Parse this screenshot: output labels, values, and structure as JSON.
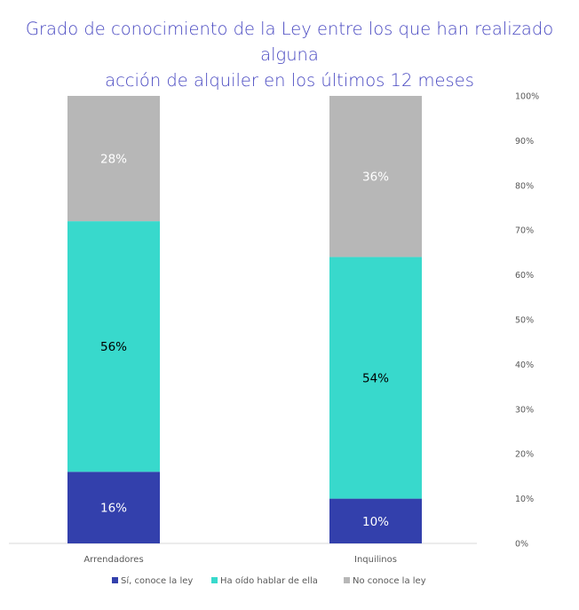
{
  "chart_data": {
    "type": "bar",
    "stacked": true,
    "title_lines": [
      "Grado de conocimiento de la Ley entre los que han realizado alguna",
      "acción de alquiler en los últimos 12 meses"
    ],
    "categories": [
      "Arrendadores",
      "Inquilinos"
    ],
    "series": [
      {
        "name": "Sí, conoce la ley",
        "values": [
          16,
          10
        ],
        "labels": [
          "16%",
          "10%"
        ],
        "color": "#3340ac",
        "label_color": "#ffffff"
      },
      {
        "name": "Ha oído hablar de ella",
        "values": [
          56,
          54
        ],
        "labels": [
          "56%",
          "54%"
        ],
        "color": "#38d9cc",
        "label_color": "#000000"
      },
      {
        "name": "No conoce la ley",
        "values": [
          28,
          36
        ],
        "labels": [
          "28%",
          "36%"
        ],
        "color": "#b7b7b7",
        "label_color": "#ffffff"
      }
    ],
    "yticks": [
      "0%",
      "10%",
      "20%",
      "30%",
      "40%",
      "50%",
      "60%",
      "70%",
      "80%",
      "90%",
      "100%"
    ],
    "ylim": [
      0,
      100
    ],
    "yaxis_position": "right",
    "grid": false,
    "legend_position": "bottom"
  }
}
